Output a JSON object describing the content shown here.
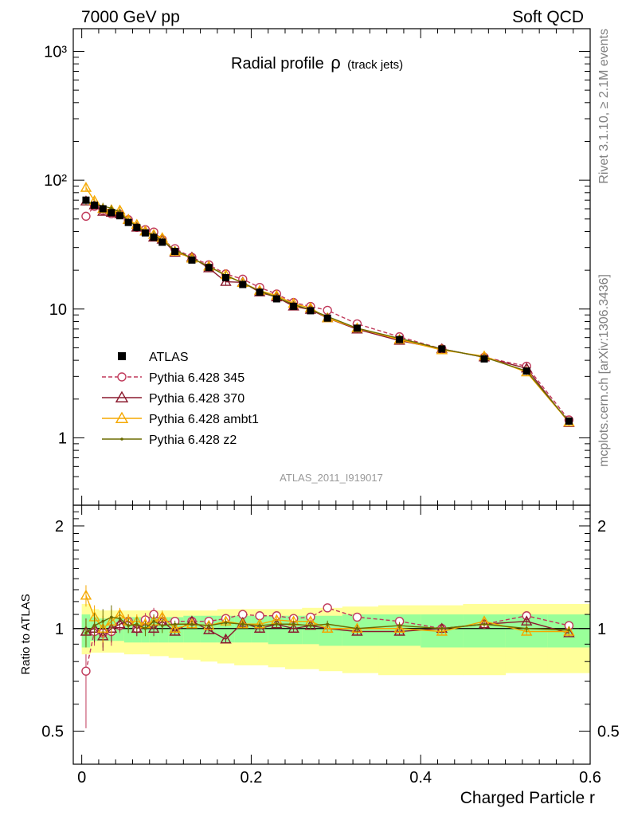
{
  "header": {
    "left": "7000 GeV pp",
    "right": "Soft QCD"
  },
  "side_texts": {
    "top": "Rivet 3.1.10, ≥ 2.1M events",
    "bottom": "mcplots.cern.ch [arXiv:1306.3436]"
  },
  "analysis_label": "ATLAS_2011_I919017",
  "main_title": "Radial profile",
  "title_symbol": "ρ",
  "title_suffix": "(track jets)",
  "chart_data": {
    "type": "line",
    "xlabel": "Charged Particle r",
    "ratio_ylabel": "Ratio to ATLAS",
    "xlim": [
      -0.01,
      0.6
    ],
    "ylim": [
      0.3,
      1500
    ],
    "ylog": true,
    "ratio_ylim": [
      0.4,
      2.3
    ],
    "ratio_ylog": true,
    "x_ticks": [
      "0",
      "0.2",
      "0.4",
      "0.6"
    ],
    "y_ticks": [
      "1",
      "10",
      "10²",
      "10³"
    ],
    "ratio_ticks": [
      "0.5",
      "1",
      "2"
    ],
    "legend_position": "lower-left",
    "x": [
      0.005,
      0.015,
      0.025,
      0.035,
      0.045,
      0.055,
      0.065,
      0.075,
      0.085,
      0.095,
      0.11,
      0.13,
      0.15,
      0.17,
      0.19,
      0.21,
      0.23,
      0.25,
      0.27,
      0.29,
      0.325,
      0.375,
      0.425,
      0.475,
      0.525,
      0.575
    ],
    "atlas": {
      "name": "ATLAS",
      "values": [
        70,
        64,
        60,
        56,
        53,
        47,
        43,
        39,
        36,
        33,
        28,
        24,
        21,
        17.5,
        15.5,
        13.5,
        12,
        10.5,
        9.7,
        8.5,
        7.1,
        5.8,
        4.9,
        4.1,
        3.3,
        1.35
      ],
      "band_inner_hi": [
        1.1,
        1.08,
        1.07,
        1.07,
        1.07,
        1.08,
        1.08,
        1.08,
        1.08,
        1.08,
        1.08,
        1.09,
        1.09,
        1.09,
        1.09,
        1.09,
        1.09,
        1.09,
        1.09,
        1.09,
        1.1,
        1.1,
        1.1,
        1.1,
        1.1,
        1.1
      ],
      "band_inner_lo": [
        0.88,
        0.92,
        0.92,
        0.92,
        0.92,
        0.91,
        0.91,
        0.91,
        0.91,
        0.91,
        0.91,
        0.91,
        0.91,
        0.91,
        0.91,
        0.91,
        0.9,
        0.9,
        0.9,
        0.89,
        0.89,
        0.89,
        0.88,
        0.88,
        0.88,
        0.88
      ],
      "band_outer_hi": [
        1.18,
        1.14,
        1.13,
        1.13,
        1.13,
        1.13,
        1.13,
        1.13,
        1.13,
        1.13,
        1.13,
        1.13,
        1.13,
        1.14,
        1.14,
        1.14,
        1.14,
        1.14,
        1.15,
        1.15,
        1.16,
        1.17,
        1.17,
        1.18,
        1.18,
        1.18
      ],
      "band_outer_lo": [
        0.84,
        0.85,
        0.85,
        0.85,
        0.85,
        0.84,
        0.84,
        0.84,
        0.83,
        0.83,
        0.82,
        0.81,
        0.8,
        0.79,
        0.78,
        0.78,
        0.77,
        0.76,
        0.76,
        0.75,
        0.74,
        0.73,
        0.73,
        0.73,
        0.74,
        0.74
      ]
    },
    "series": [
      {
        "name": "Pythia 6.428 345",
        "color": "#c0395a",
        "marker": "circle",
        "dashed": true,
        "ratio": [
          0.75,
          0.98,
          0.97,
          0.98,
          1.02,
          1.05,
          1.0,
          1.06,
          1.1,
          1.05,
          1.05,
          1.05,
          1.05,
          1.07,
          1.1,
          1.09,
          1.09,
          1.07,
          1.08,
          1.15,
          1.08,
          1.05,
          1.0,
          1.03,
          1.09,
          1.02
        ]
      },
      {
        "name": "Pythia 6.428 370",
        "color": "#8b1a2e",
        "marker": "triangle",
        "dashed": false,
        "ratio": [
          0.98,
          1.0,
          0.95,
          1.0,
          1.03,
          1.05,
          1.0,
          1.03,
          1.0,
          1.05,
          0.98,
          1.05,
          0.99,
          0.93,
          1.04,
          1.0,
          1.03,
          1.0,
          1.02,
          1.0,
          0.98,
          0.98,
          1.0,
          1.03,
          1.05,
          0.97
        ]
      },
      {
        "name": "Pythia 6.428 ambt1",
        "color": "#f5a800",
        "marker": "triangle",
        "dashed": false,
        "ratio": [
          1.25,
          1.08,
          1.0,
          1.05,
          1.1,
          1.05,
          1.05,
          1.03,
          1.05,
          1.08,
          1.0,
          1.03,
          1.02,
          1.05,
          1.03,
          1.03,
          1.06,
          1.05,
          1.05,
          1.0,
          1.0,
          1.0,
          0.98,
          1.05,
          0.98,
          0.98
        ]
      },
      {
        "name": "Pythia 6.428 z2",
        "color": "#6b6b00",
        "marker": "dot",
        "dashed": false,
        "ratio": [
          0.97,
          1.02,
          1.05,
          1.08,
          1.07,
          1.02,
          1.03,
          1.0,
          1.05,
          1.02,
          1.03,
          1.03,
          1.02,
          1.04,
          1.03,
          1.02,
          1.03,
          1.03,
          1.02,
          1.03,
          1.0,
          1.02,
          1.0,
          1.03,
          1.0,
          0.99
        ]
      }
    ]
  }
}
